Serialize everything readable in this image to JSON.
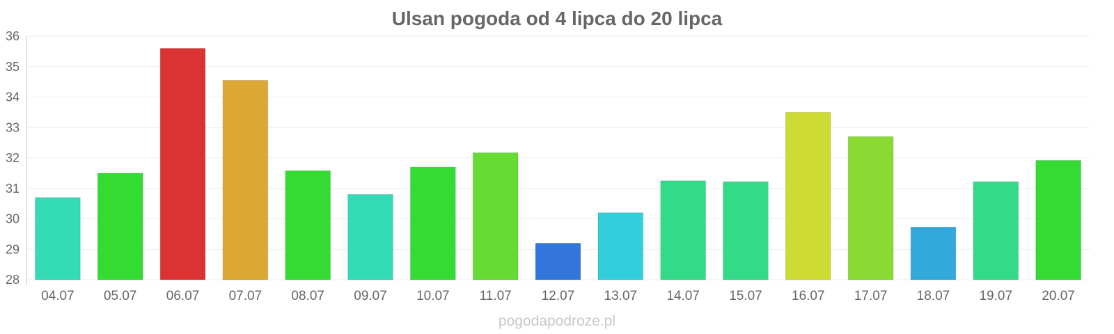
{
  "watermark": "pogodapodroze.pl",
  "chart_data": {
    "type": "bar",
    "title": "Ulsan pogoda od 4 lipca do 20 lipca",
    "xlabel": "",
    "ylabel": "",
    "ylim": [
      28,
      36
    ],
    "yticks": [
      28,
      29,
      30,
      31,
      32,
      33,
      34,
      35,
      36
    ],
    "grid": true,
    "categories": [
      "04.07",
      "05.07",
      "06.07",
      "07.07",
      "08.07",
      "09.07",
      "10.07",
      "11.07",
      "12.07",
      "13.07",
      "14.07",
      "15.07",
      "16.07",
      "17.07",
      "18.07",
      "19.07",
      "20.07"
    ],
    "values": [
      30.7,
      31.5,
      35.6,
      34.55,
      31.58,
      30.8,
      31.7,
      32.17,
      29.2,
      30.2,
      31.25,
      31.22,
      33.5,
      32.7,
      29.73,
      31.22,
      31.92
    ],
    "colors": [
      "#33dbb6",
      "#33db33",
      "#db3333",
      "#dba833",
      "#33db33",
      "#33dbb6",
      "#33db33",
      "#66db33",
      "#3376db",
      "#33cedb",
      "#33db89",
      "#33db89",
      "#cedb33",
      "#89db33",
      "#33a8db",
      "#33db89",
      "#33db33"
    ]
  }
}
